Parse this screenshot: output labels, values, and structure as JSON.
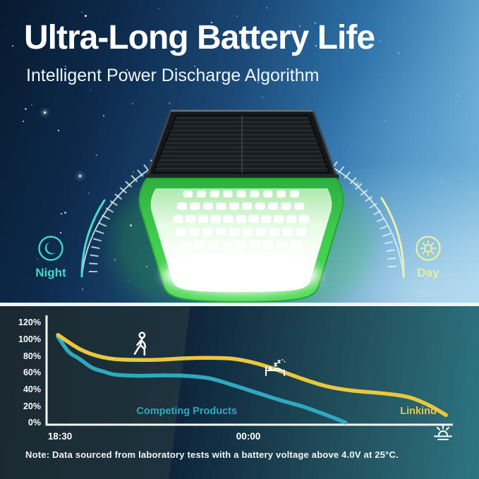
{
  "header": {
    "title": "Ultra-Long Battery Life",
    "subtitle": "Intelligent Power Discharge Algorithm"
  },
  "cycle": {
    "night": {
      "label": "Night",
      "icon": "moon-icon",
      "color": "#3fd8ca"
    },
    "day": {
      "label": "Day",
      "icon": "sun-icon",
      "color": "#e6f0a2"
    }
  },
  "chart_data": {
    "type": "line",
    "title": "",
    "xlabel": "",
    "ylabel": "",
    "grid": false,
    "ylim": [
      0,
      120
    ],
    "y_ticks": [
      "120%",
      "100%",
      "80%",
      "60%",
      "40%",
      "20%",
      "0%"
    ],
    "x_ticks": [
      {
        "label": "18:30",
        "pos": 0.033
      },
      {
        "label": "00:00",
        "pos": 0.497
      }
    ],
    "x_end_icon": "sunrise-icon",
    "x_axis_note": "x positions are fractions of the time axis from 18:30 (0) to sunrise (1)",
    "series": [
      {
        "name": "Linkind",
        "color": "#e9c73e",
        "points": [
          [
            0.028,
            105
          ],
          [
            0.055,
            96
          ],
          [
            0.082,
            88
          ],
          [
            0.111,
            82
          ],
          [
            0.141,
            78
          ],
          [
            0.17,
            76
          ],
          [
            0.227,
            75
          ],
          [
            0.285,
            75.5
          ],
          [
            0.342,
            77
          ],
          [
            0.4,
            77.5
          ],
          [
            0.458,
            76.5
          ],
          [
            0.516,
            71
          ],
          [
            0.574,
            62
          ],
          [
            0.632,
            52
          ],
          [
            0.689,
            43.5
          ],
          [
            0.748,
            38.5
          ],
          [
            0.806,
            36
          ],
          [
            0.863,
            33
          ],
          [
            0.901,
            29
          ],
          [
            0.944,
            20
          ],
          [
            0.983,
            9
          ]
        ]
      },
      {
        "name": "Competing Products",
        "color": "#2fa9bf",
        "points": [
          [
            0.028,
            103
          ],
          [
            0.054,
            85
          ],
          [
            0.082,
            76
          ],
          [
            0.111,
            66
          ],
          [
            0.141,
            61
          ],
          [
            0.168,
            57.5
          ],
          [
            0.227,
            56
          ],
          [
            0.285,
            56.5
          ],
          [
            0.342,
            56
          ],
          [
            0.401,
            53
          ],
          [
            0.458,
            45
          ],
          [
            0.516,
            36
          ],
          [
            0.574,
            27
          ],
          [
            0.632,
            19
          ],
          [
            0.689,
            9
          ],
          [
            0.736,
            0
          ]
        ]
      }
    ],
    "legend_positions": [
      {
        "series": "Linkind",
        "x": 0.915,
        "y": 10
      },
      {
        "series": "Competing Products",
        "x": 0.345,
        "y": 10
      }
    ],
    "annotations": [
      {
        "icon": "walking-person-icon",
        "x": 0.233,
        "y": 91
      },
      {
        "icon": "sleeping-person-icon",
        "x": 0.5625,
        "y": 65
      }
    ]
  },
  "note": "Note: Data sourced from laboratory tests with a battery voltage above 4.0V at 25°C."
}
